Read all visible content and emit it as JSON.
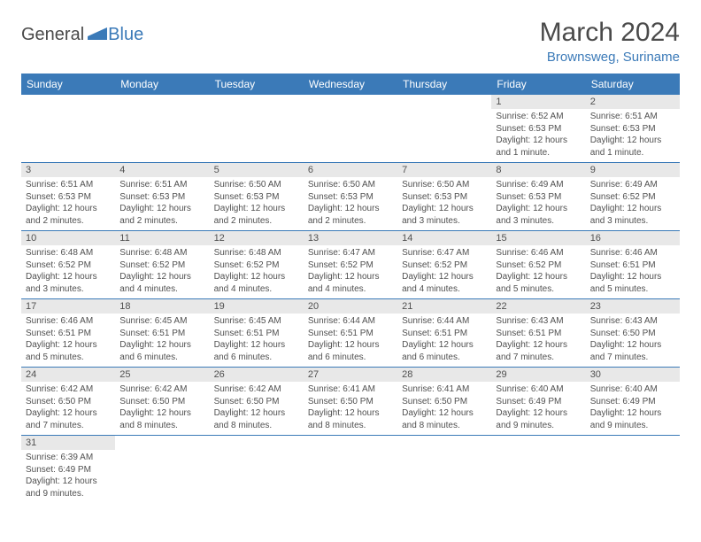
{
  "logo": {
    "text1": "General",
    "text2": "Blue",
    "accent_color": "#3b7ab8"
  },
  "title": "March 2024",
  "location": "Brownsweg, Suriname",
  "colors": {
    "header_bg": "#3b7ab8",
    "header_fg": "#ffffff",
    "daynum_bg": "#e8e8e8",
    "border": "#3b7ab8",
    "text": "#505050"
  },
  "weekdays": [
    "Sunday",
    "Monday",
    "Tuesday",
    "Wednesday",
    "Thursday",
    "Friday",
    "Saturday"
  ],
  "weeks": [
    [
      null,
      null,
      null,
      null,
      null,
      {
        "n": "1",
        "sr": "6:52 AM",
        "ss": "6:53 PM",
        "dl": "12 hours and 1 minute."
      },
      {
        "n": "2",
        "sr": "6:51 AM",
        "ss": "6:53 PM",
        "dl": "12 hours and 1 minute."
      }
    ],
    [
      {
        "n": "3",
        "sr": "6:51 AM",
        "ss": "6:53 PM",
        "dl": "12 hours and 2 minutes."
      },
      {
        "n": "4",
        "sr": "6:51 AM",
        "ss": "6:53 PM",
        "dl": "12 hours and 2 minutes."
      },
      {
        "n": "5",
        "sr": "6:50 AM",
        "ss": "6:53 PM",
        "dl": "12 hours and 2 minutes."
      },
      {
        "n": "6",
        "sr": "6:50 AM",
        "ss": "6:53 PM",
        "dl": "12 hours and 2 minutes."
      },
      {
        "n": "7",
        "sr": "6:50 AM",
        "ss": "6:53 PM",
        "dl": "12 hours and 3 minutes."
      },
      {
        "n": "8",
        "sr": "6:49 AM",
        "ss": "6:53 PM",
        "dl": "12 hours and 3 minutes."
      },
      {
        "n": "9",
        "sr": "6:49 AM",
        "ss": "6:52 PM",
        "dl": "12 hours and 3 minutes."
      }
    ],
    [
      {
        "n": "10",
        "sr": "6:48 AM",
        "ss": "6:52 PM",
        "dl": "12 hours and 3 minutes."
      },
      {
        "n": "11",
        "sr": "6:48 AM",
        "ss": "6:52 PM",
        "dl": "12 hours and 4 minutes."
      },
      {
        "n": "12",
        "sr": "6:48 AM",
        "ss": "6:52 PM",
        "dl": "12 hours and 4 minutes."
      },
      {
        "n": "13",
        "sr": "6:47 AM",
        "ss": "6:52 PM",
        "dl": "12 hours and 4 minutes."
      },
      {
        "n": "14",
        "sr": "6:47 AM",
        "ss": "6:52 PM",
        "dl": "12 hours and 4 minutes."
      },
      {
        "n": "15",
        "sr": "6:46 AM",
        "ss": "6:52 PM",
        "dl": "12 hours and 5 minutes."
      },
      {
        "n": "16",
        "sr": "6:46 AM",
        "ss": "6:51 PM",
        "dl": "12 hours and 5 minutes."
      }
    ],
    [
      {
        "n": "17",
        "sr": "6:46 AM",
        "ss": "6:51 PM",
        "dl": "12 hours and 5 minutes."
      },
      {
        "n": "18",
        "sr": "6:45 AM",
        "ss": "6:51 PM",
        "dl": "12 hours and 6 minutes."
      },
      {
        "n": "19",
        "sr": "6:45 AM",
        "ss": "6:51 PM",
        "dl": "12 hours and 6 minutes."
      },
      {
        "n": "20",
        "sr": "6:44 AM",
        "ss": "6:51 PM",
        "dl": "12 hours and 6 minutes."
      },
      {
        "n": "21",
        "sr": "6:44 AM",
        "ss": "6:51 PM",
        "dl": "12 hours and 6 minutes."
      },
      {
        "n": "22",
        "sr": "6:43 AM",
        "ss": "6:51 PM",
        "dl": "12 hours and 7 minutes."
      },
      {
        "n": "23",
        "sr": "6:43 AM",
        "ss": "6:50 PM",
        "dl": "12 hours and 7 minutes."
      }
    ],
    [
      {
        "n": "24",
        "sr": "6:42 AM",
        "ss": "6:50 PM",
        "dl": "12 hours and 7 minutes."
      },
      {
        "n": "25",
        "sr": "6:42 AM",
        "ss": "6:50 PM",
        "dl": "12 hours and 8 minutes."
      },
      {
        "n": "26",
        "sr": "6:42 AM",
        "ss": "6:50 PM",
        "dl": "12 hours and 8 minutes."
      },
      {
        "n": "27",
        "sr": "6:41 AM",
        "ss": "6:50 PM",
        "dl": "12 hours and 8 minutes."
      },
      {
        "n": "28",
        "sr": "6:41 AM",
        "ss": "6:50 PM",
        "dl": "12 hours and 8 minutes."
      },
      {
        "n": "29",
        "sr": "6:40 AM",
        "ss": "6:49 PM",
        "dl": "12 hours and 9 minutes."
      },
      {
        "n": "30",
        "sr": "6:40 AM",
        "ss": "6:49 PM",
        "dl": "12 hours and 9 minutes."
      }
    ],
    [
      {
        "n": "31",
        "sr": "6:39 AM",
        "ss": "6:49 PM",
        "dl": "12 hours and 9 minutes."
      },
      null,
      null,
      null,
      null,
      null,
      null
    ]
  ],
  "labels": {
    "sunrise": "Sunrise:",
    "sunset": "Sunset:",
    "daylight": "Daylight:"
  }
}
